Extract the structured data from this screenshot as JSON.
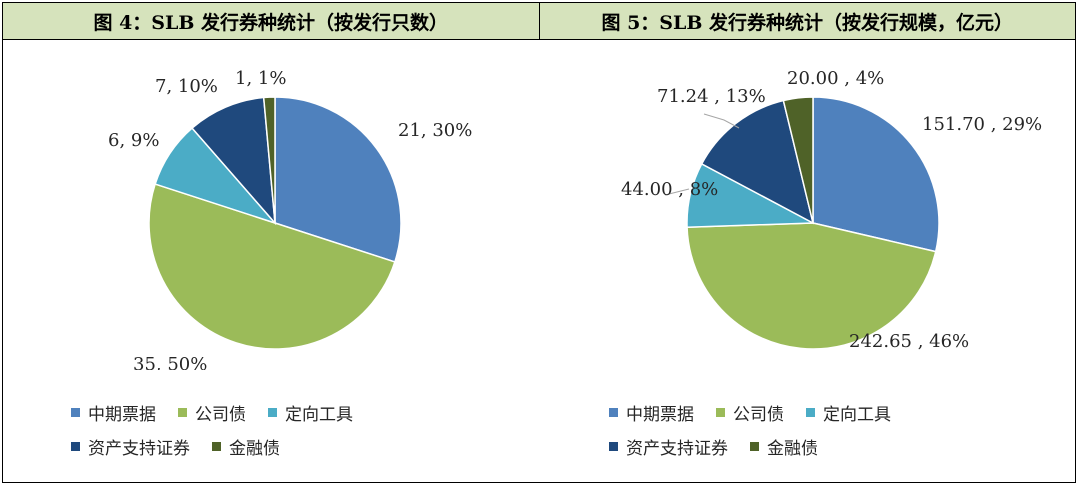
{
  "headers": {
    "left": "图 4：SLB 发行券种统计（按发行只数）",
    "right": "图 5：SLB 发行券种统计（按发行规模，亿元）"
  },
  "legend": [
    "中期票据",
    "公司债",
    "定向工具",
    "资产支持证券",
    "金融债"
  ],
  "colors": [
    "#4f81bd",
    "#9bbb59",
    "#4bacc6",
    "#1f497d",
    "#4f6228"
  ],
  "chart_data": [
    {
      "type": "pie",
      "title": "图 4：SLB 发行券种统计（按发行只数）",
      "categories": [
        "中期票据",
        "公司债",
        "定向工具",
        "资产支持证券",
        "金融债"
      ],
      "values": [
        21,
        35,
        6,
        7,
        1
      ],
      "labels": [
        "21, 30%",
        "35, 50%",
        "6, 9%",
        "7, 10%",
        "1, 1%"
      ],
      "legend_position": "bottom"
    },
    {
      "type": "pie",
      "title": "图 5：SLB 发行券种统计（按发行规模，亿元）",
      "categories": [
        "中期票据",
        "公司债",
        "定向工具",
        "资产支持证券",
        "金融债"
      ],
      "values": [
        151.7,
        242.65,
        44.0,
        71.24,
        20.0
      ],
      "labels": [
        "151.70 , 29%",
        "242.65 , 46%",
        "44.00 , 8%",
        "71.24 , 13%",
        "20.00 , 4%"
      ],
      "legend_position": "bottom"
    }
  ]
}
